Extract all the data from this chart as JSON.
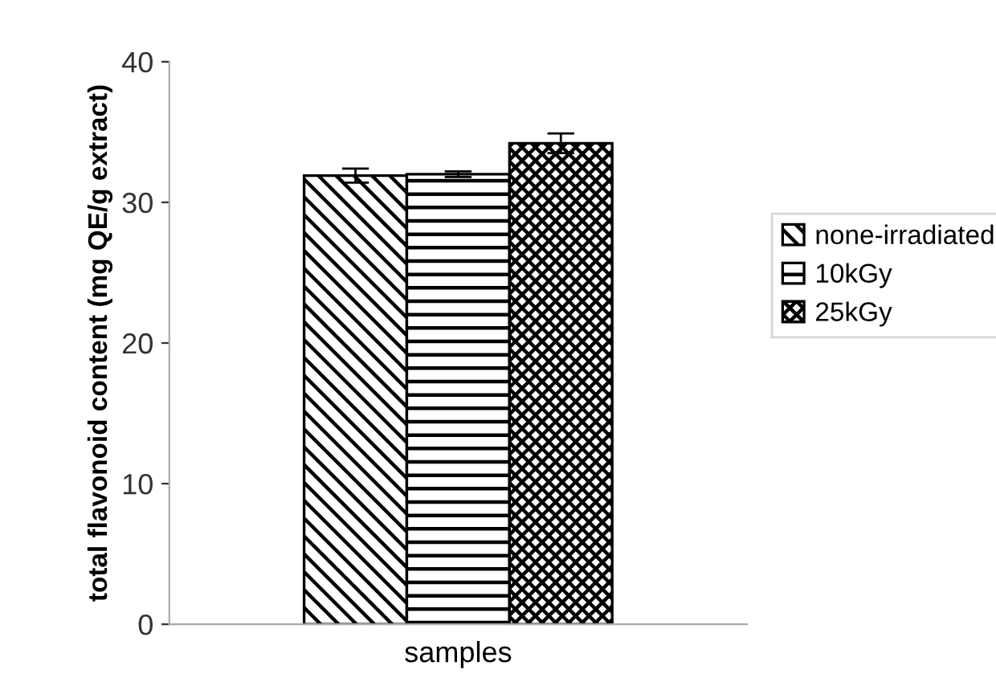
{
  "chart_data": {
    "type": "bar",
    "xlabel": "samples",
    "ylabel": "total flavonoid content (mg QE/g extract)",
    "categories": [
      null
    ],
    "series": [
      {
        "name": "none-irradiated",
        "color": "#000000",
        "values": [
          31.9
        ],
        "errors": [
          0.5
        ]
      },
      {
        "name": "10kGy",
        "color": "#000000",
        "values": [
          32.0
        ],
        "errors": [
          0.2
        ]
      },
      {
        "name": "25kGy",
        "color": "#000000",
        "values": [
          34.2
        ],
        "errors": [
          0.7
        ]
      }
    ],
    "ylim": [
      0,
      40
    ],
    "yticks": [
      0,
      10,
      20,
      30,
      40
    ],
    "grid": false,
    "legend": "right"
  }
}
